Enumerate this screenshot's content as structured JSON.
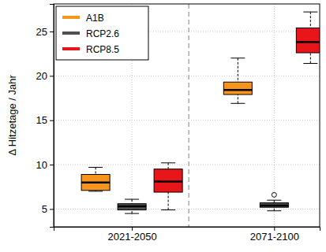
{
  "chart_data": {
    "type": "box",
    "y_label": "Δ Hitzetage / Jahr",
    "categories": [
      "2021-2050",
      "2071-2100"
    ],
    "ylim": [
      3.0,
      28.1
    ],
    "yticks": [
      5,
      10,
      15,
      20,
      25
    ],
    "grid": true,
    "legend": "upper left",
    "series": [
      {
        "name": "A1B",
        "color": "#f7941d",
        "whisker_low": [
          7.0,
          16.9
        ],
        "q1": [
          7.1,
          17.9
        ],
        "median": [
          8.0,
          18.4
        ],
        "q3": [
          8.9,
          19.3
        ],
        "whisker_high": [
          9.7,
          22.0
        ],
        "outliers": [
          [],
          []
        ]
      },
      {
        "name": "RCP2.6",
        "color": "#505050",
        "whisker_low": [
          4.5,
          4.8
        ],
        "q1": [
          4.9,
          5.2
        ],
        "median": [
          5.3,
          5.4
        ],
        "q3": [
          5.6,
          5.7
        ],
        "whisker_high": [
          6.1,
          6.0
        ],
        "outliers": [
          [],
          [
            6.6
          ]
        ]
      },
      {
        "name": "RCP8.5",
        "color": "#e8161b",
        "whisker_low": [
          4.9,
          21.4
        ],
        "q1": [
          6.9,
          22.6
        ],
        "median": [
          8.1,
          23.8
        ],
        "q3": [
          9.5,
          25.4
        ],
        "whisker_high": [
          10.2,
          27.2
        ],
        "outliers": [
          [],
          []
        ]
      }
    ]
  }
}
